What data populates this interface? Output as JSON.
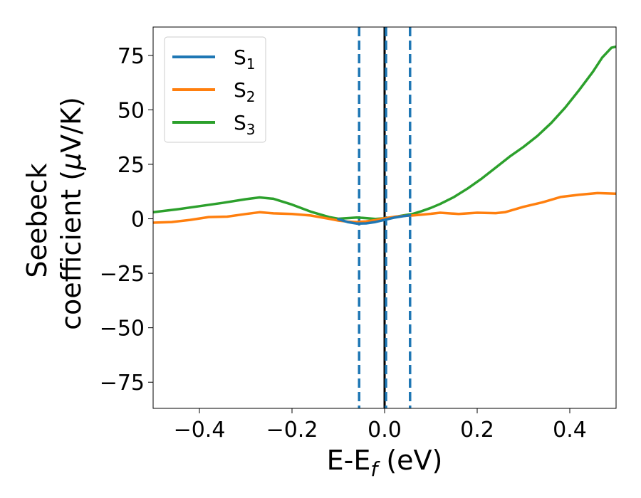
{
  "chart_data": {
    "type": "line",
    "xlabel": {
      "main": "E-E",
      "sub": "f",
      "tail": " (eV)"
    },
    "ylabel": {
      "line1": "Seebeck",
      "line2_pre": "coefficient  (",
      "line2_mu": "μ",
      "line2_post": "V/K)"
    },
    "xlim": [
      -0.5,
      0.5
    ],
    "ylim": [
      -87,
      88
    ],
    "xticks": [
      {
        "value": -0.4,
        "label": "−0.4"
      },
      {
        "value": -0.2,
        "label": "−0.2"
      },
      {
        "value": 0.0,
        "label": "0.0"
      },
      {
        "value": 0.2,
        "label": "0.2"
      },
      {
        "value": 0.4,
        "label": "0.4"
      }
    ],
    "yticks": [
      {
        "value": 75,
        "label": "75"
      },
      {
        "value": 50,
        "label": "50"
      },
      {
        "value": 25,
        "label": "25"
      },
      {
        "value": 0,
        "label": "0"
      },
      {
        "value": -25,
        "label": "−25"
      },
      {
        "value": -50,
        "label": "−50"
      },
      {
        "value": -75,
        "label": "−75"
      }
    ],
    "legend_position": "top-left",
    "vlines": [
      {
        "x": -0.055,
        "color": "#1f77b4",
        "style": "dashed"
      },
      {
        "x": 0.0,
        "color": "#000000",
        "style": "solid"
      },
      {
        "x": 0.003,
        "color": "#1f77b4",
        "style": "dashed"
      },
      {
        "x": 0.055,
        "color": "#1f77b4",
        "style": "dashed"
      }
    ],
    "series": [
      {
        "name": "S",
        "sub": "1",
        "color": "#1f77b4",
        "x": [
          -0.1,
          -0.08,
          -0.06,
          -0.04,
          -0.02,
          0.0,
          0.02,
          0.04,
          0.055
        ],
        "y": [
          -0.2,
          -1.5,
          -2.2,
          -2.1,
          -1.5,
          -0.5,
          0.5,
          1.2,
          1.6
        ]
      },
      {
        "name": "S",
        "sub": "2",
        "color": "#ff7f0e",
        "x": [
          -0.5,
          -0.46,
          -0.42,
          -0.38,
          -0.34,
          -0.3,
          -0.27,
          -0.24,
          -0.2,
          -0.16,
          -0.12,
          -0.1,
          -0.08,
          -0.06,
          -0.04,
          -0.02,
          0.0,
          0.02,
          0.04,
          0.06,
          0.08,
          0.1,
          0.12,
          0.16,
          0.2,
          0.24,
          0.26,
          0.3,
          0.34,
          0.38,
          0.42,
          0.46,
          0.5
        ],
        "y": [
          -1.8,
          -1.5,
          -0.5,
          0.8,
          1.0,
          2.2,
          3.0,
          2.5,
          2.2,
          1.5,
          0.0,
          -0.8,
          -1.3,
          -1.5,
          -1.2,
          -0.6,
          0.2,
          0.9,
          1.3,
          1.5,
          1.9,
          2.3,
          2.8,
          2.2,
          2.8,
          2.6,
          3.0,
          5.5,
          7.5,
          10.0,
          11.0,
          11.8,
          11.5
        ]
      },
      {
        "name": "S",
        "sub": "3",
        "color": "#2ca02c",
        "x": [
          -0.5,
          -0.45,
          -0.4,
          -0.35,
          -0.3,
          -0.27,
          -0.24,
          -0.2,
          -0.16,
          -0.12,
          -0.1,
          -0.08,
          -0.06,
          -0.04,
          -0.02,
          0.0,
          0.02,
          0.04,
          0.06,
          0.08,
          0.1,
          0.12,
          0.15,
          0.18,
          0.21,
          0.24,
          0.27,
          0.3,
          0.33,
          0.36,
          0.39,
          0.42,
          0.45,
          0.47,
          0.49,
          0.5
        ],
        "y": [
          3.0,
          4.3,
          5.8,
          7.3,
          9.0,
          9.8,
          9.2,
          6.5,
          3.3,
          0.8,
          0.0,
          0.3,
          0.6,
          0.3,
          -0.1,
          0.2,
          0.8,
          1.5,
          2.2,
          3.5,
          5.0,
          6.8,
          10.0,
          14.0,
          18.5,
          23.5,
          28.5,
          33.0,
          38.0,
          44.0,
          51.0,
          59.0,
          67.5,
          74.0,
          78.5,
          79.0
        ]
      }
    ]
  }
}
